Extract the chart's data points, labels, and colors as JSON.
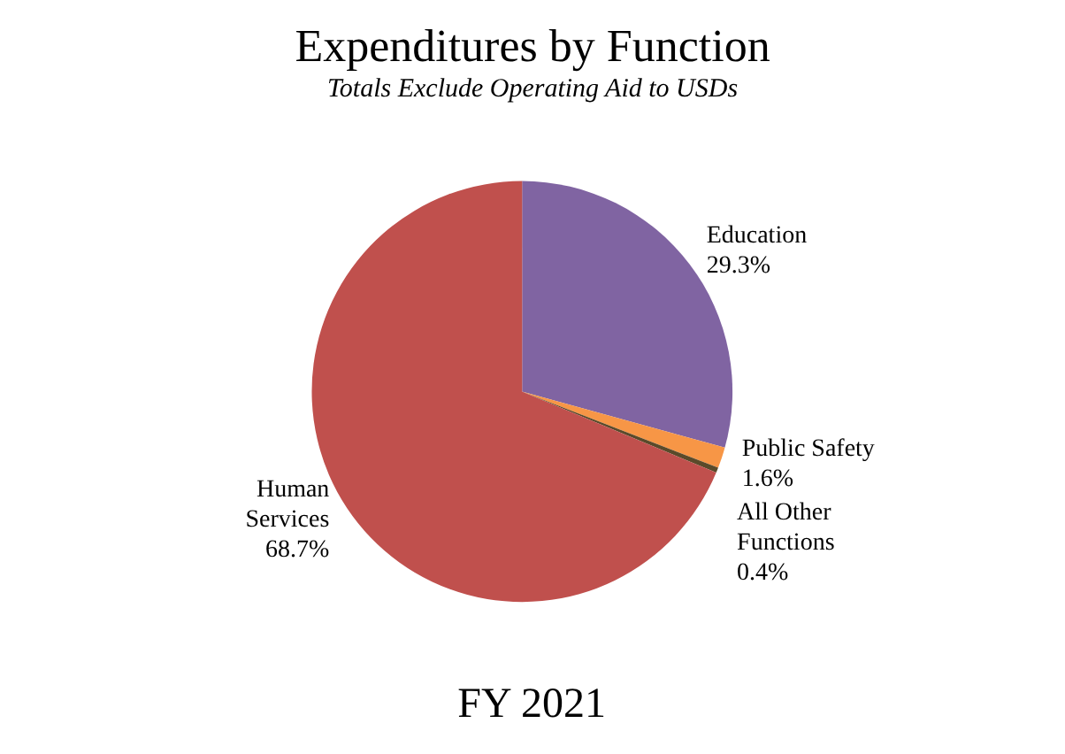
{
  "chart_data": {
    "type": "pie",
    "title": "Expenditures by Function",
    "subtitle": "Totals Exclude Operating Aid to USDs",
    "categories": [
      "Education",
      "Public Safety",
      "All Other Functions",
      "Human Services"
    ],
    "values": [
      29.3,
      1.6,
      0.4,
      68.7
    ],
    "colors": [
      "#8064a2",
      "#f79646",
      "#5a4a2a",
      "#c0504d"
    ],
    "value_labels": [
      "29.3%",
      "1.6%",
      "0.4%",
      "68.7%"
    ],
    "annotations": [
      "FY 2021"
    ],
    "legend": false
  }
}
